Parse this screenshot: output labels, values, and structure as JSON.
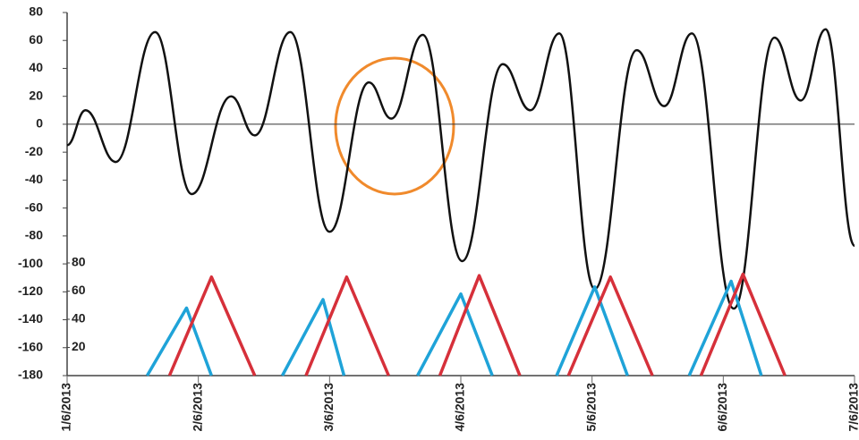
{
  "chart_data": {
    "type": "line",
    "xlim": [
      0,
      6
    ],
    "xticks": [
      {
        "value": 0,
        "label": "1/6/2013"
      },
      {
        "value": 1,
        "label": "2/6/2013"
      },
      {
        "value": 2,
        "label": "3/6/2013"
      },
      {
        "value": 3,
        "label": "4/6/2013"
      },
      {
        "value": 4,
        "label": "5/6/2013"
      },
      {
        "value": 5,
        "label": "6/6/2013"
      },
      {
        "value": 6,
        "label": "7/6/2013"
      }
    ],
    "ylim": [
      -180,
      80
    ],
    "yticks": [
      -180,
      -160,
      -140,
      -120,
      -100,
      -80,
      -60,
      -40,
      -20,
      0,
      20,
      40,
      60,
      80
    ],
    "y2lim": [
      0,
      80
    ],
    "y2ticks": [
      20,
      40,
      60,
      80
    ],
    "series": [
      {
        "color": "#111111",
        "smooth": true,
        "x": [
          0,
          0.14,
          0.37,
          0.67,
          0.95,
          1.25,
          1.43,
          1.7,
          2.0,
          2.3,
          2.47,
          2.71,
          3.01,
          3.32,
          3.53,
          3.75,
          4.02,
          4.34,
          4.55,
          4.76,
          5.08,
          5.39,
          5.59,
          5.78,
          6.0
        ],
        "values": [
          -15,
          10,
          -27,
          66,
          -50,
          20,
          -8,
          66,
          -77,
          30,
          4,
          64,
          -98,
          43,
          10,
          65,
          -118,
          53,
          13,
          65,
          -132,
          62,
          17,
          68,
          -87
        ]
      },
      {
        "color": "#1fa3d8",
        "axis": "y2",
        "x": [
          0.61,
          0.91,
          1.1,
          null,
          1.64,
          1.95,
          2.11,
          null,
          2.67,
          3.0,
          3.24,
          null,
          3.73,
          4.02,
          4.27,
          null,
          4.74,
          5.06,
          5.29
        ],
        "values": [
          0,
          48,
          0,
          null,
          0,
          54,
          0,
          null,
          0,
          58,
          0,
          null,
          0,
          63,
          0,
          null,
          0,
          67,
          0
        ]
      },
      {
        "color": "#d6303a",
        "axis": "y2",
        "x": [
          0.78,
          1.1,
          1.43,
          null,
          1.82,
          2.13,
          2.45,
          null,
          2.84,
          3.14,
          3.45,
          null,
          3.82,
          4.14,
          4.46,
          null,
          4.83,
          5.15,
          5.47
        ],
        "values": [
          0,
          70,
          0,
          null,
          0,
          70,
          0,
          null,
          0,
          71,
          0,
          null,
          0,
          70,
          0,
          null,
          0,
          72,
          0
        ]
      }
    ]
  }
}
